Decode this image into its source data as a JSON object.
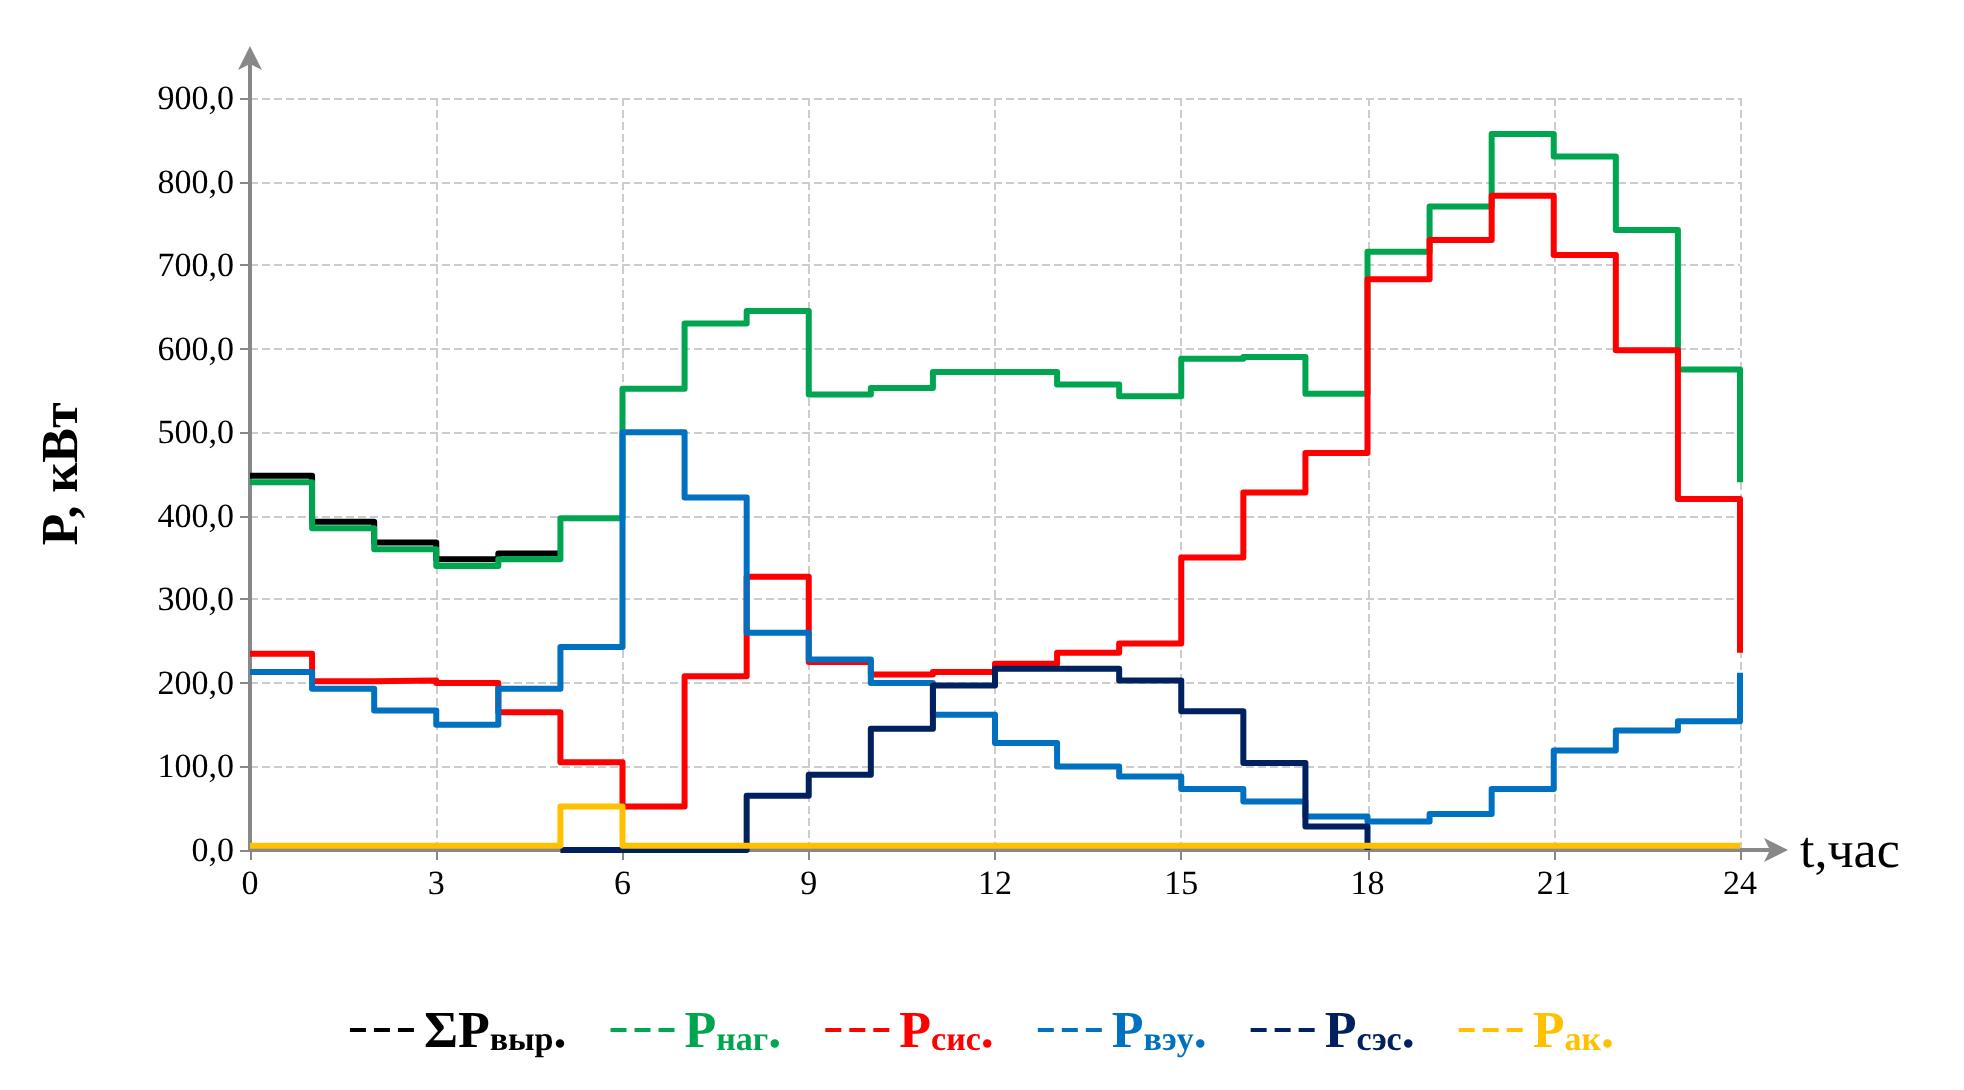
{
  "chart_data": {
    "type": "step",
    "xlabel": "t,час",
    "ylabel": "P, кВт",
    "x": [
      0,
      1,
      2,
      3,
      4,
      5,
      6,
      7,
      8,
      9,
      10,
      11,
      12,
      13,
      14,
      15,
      16,
      17,
      18,
      19,
      20,
      21,
      22,
      23,
      24
    ],
    "series": [
      {
        "name": "ΣP$_{выр}$.",
        "color": "#000000",
        "x": [
          0,
          1,
          2,
          3,
          4,
          5
        ],
        "values": [
          448,
          393,
          368,
          348,
          355,
          355
        ]
      },
      {
        "name": "P$_{наг}$.",
        "color": "#00a550",
        "values": [
          440,
          385,
          360,
          340,
          348,
          397,
          552,
          630,
          645,
          545,
          553,
          572,
          572,
          557,
          543,
          588,
          590,
          546,
          716,
          770,
          857,
          830,
          742,
          575,
          440
        ]
      },
      {
        "name": "P$_{сис}$.",
        "color": "#ff0000",
        "values": [
          235,
          202,
          203,
          200,
          165,
          105,
          52,
          208,
          327,
          225,
          210,
          213,
          223,
          236,
          247,
          350,
          428,
          475,
          683,
          730,
          783,
          712,
          598,
          420,
          236
        ]
      },
      {
        "name": "P$_{вэу}$.",
        "color": "#0070c0",
        "values": [
          213,
          193,
          167,
          150,
          193,
          243,
          500,
          422,
          260,
          228,
          200,
          162,
          128,
          100,
          88,
          73,
          58,
          40,
          34,
          43,
          73,
          119,
          143,
          154,
          212
        ]
      },
      {
        "name": "P$_{сэс}$.",
        "color": "#002060",
        "x": [
          5,
          6,
          7,
          8,
          9,
          10,
          11,
          12,
          13,
          14,
          15,
          16,
          17,
          18
        ],
        "values": [
          0,
          0,
          0,
          65,
          90,
          145,
          197,
          217,
          217,
          203,
          166,
          104,
          28,
          0
        ]
      },
      {
        "name": "P$_{ак}$.",
        "color": "#ffc000",
        "values": [
          5,
          5,
          5,
          5,
          5,
          52,
          5,
          5,
          5,
          5,
          5,
          5,
          5,
          5,
          5,
          5,
          5,
          5,
          5,
          5,
          5,
          5,
          5,
          5,
          5
        ]
      }
    ],
    "xlim": [
      0,
      24
    ],
    "xticks": [
      0,
      3,
      6,
      9,
      12,
      15,
      18,
      21,
      24
    ],
    "ylim": [
      0,
      900
    ],
    "yticks": [
      {
        "value": 0,
        "label": "0,0"
      },
      {
        "value": 100,
        "label": "100,0"
      },
      {
        "value": 200,
        "label": "200,0"
      },
      {
        "value": 300,
        "label": "300,0"
      },
      {
        "value": 400,
        "label": "400,0"
      },
      {
        "value": 500,
        "label": "500,0"
      },
      {
        "value": 600,
        "label": "600,0"
      },
      {
        "value": 700,
        "label": "700,0"
      },
      {
        "value": 800,
        "label": "800,0"
      },
      {
        "value": 900,
        "label": "900,0"
      }
    ],
    "grid": true,
    "legend": "bottom",
    "marker": "none",
    "line_style": "solid"
  }
}
